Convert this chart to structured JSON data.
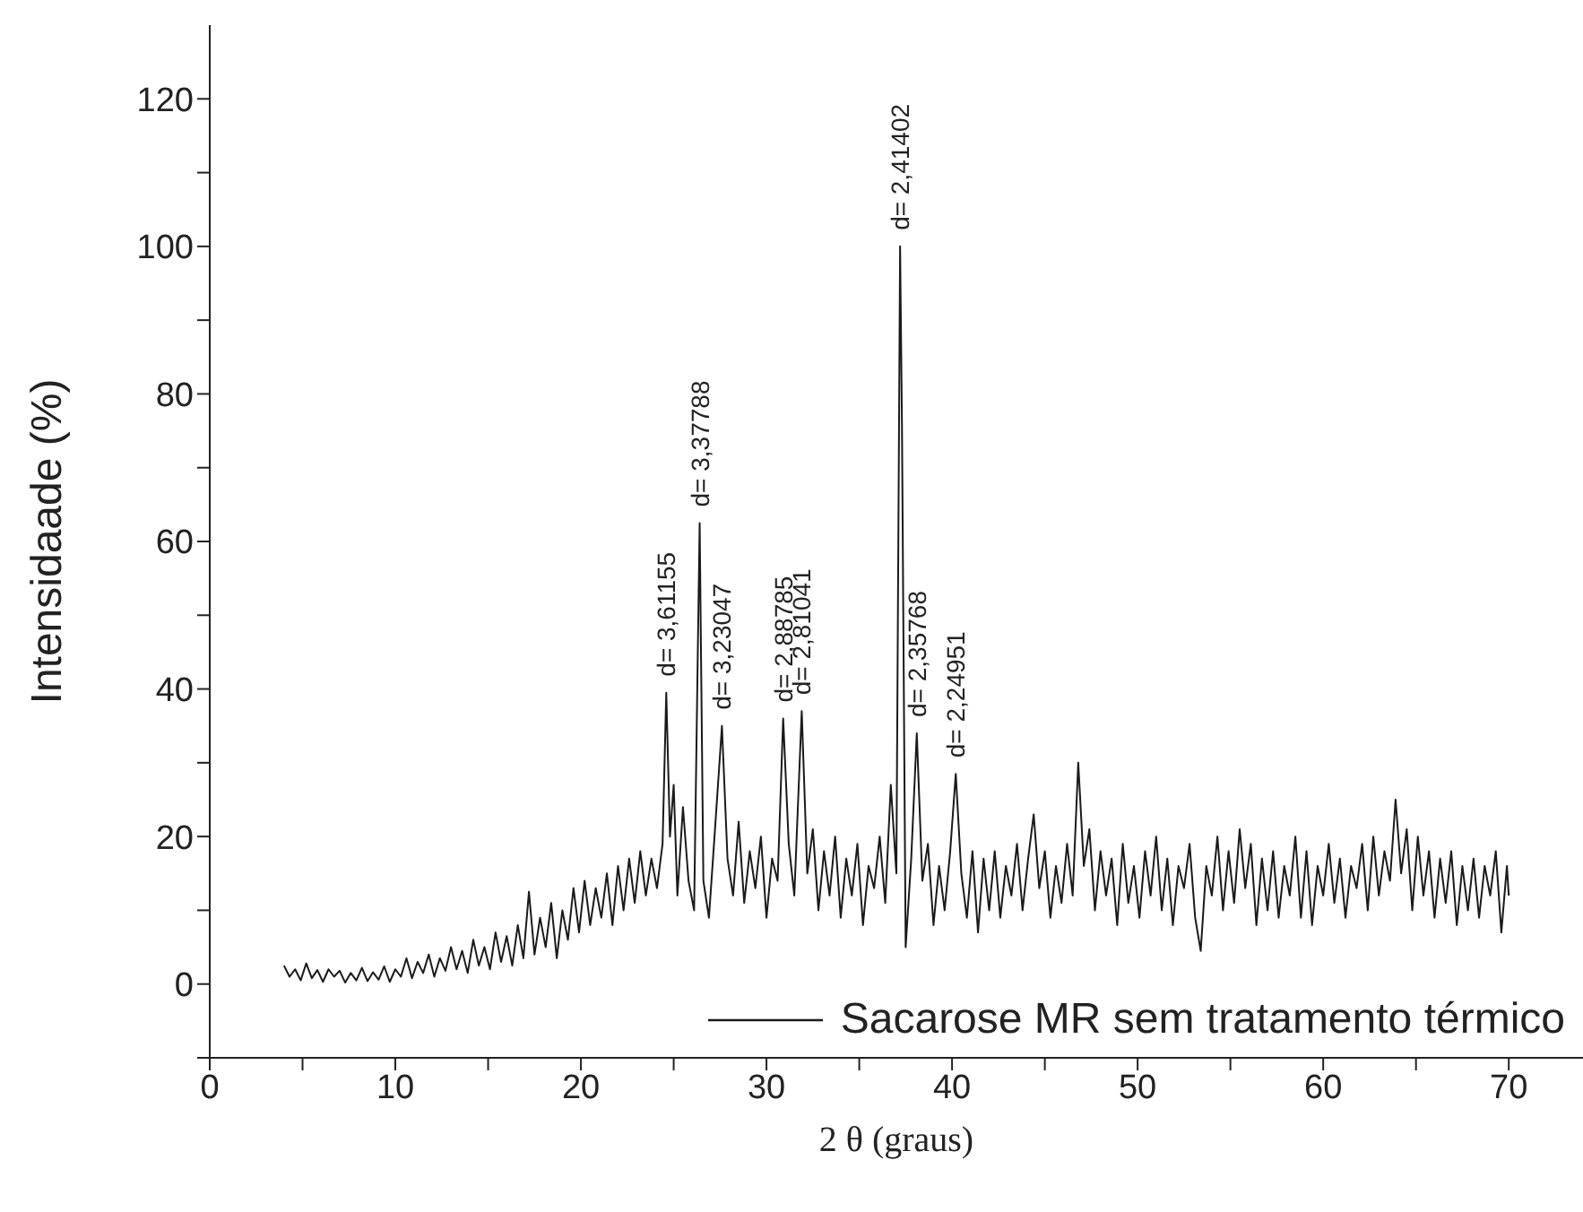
{
  "chart_data": {
    "type": "line",
    "xlabel": "2 θ (graus)",
    "ylabel": "Intensidaade (%)",
    "xlim": [
      0,
      74
    ],
    "ylim": [
      -10,
      130
    ],
    "xticks": [
      0,
      {
        "value": 5,
        "label": null
      },
      10,
      {
        "value": 15,
        "label": null
      },
      20,
      {
        "value": 25,
        "label": null
      },
      30,
      {
        "value": 35,
        "label": null
      },
      40,
      {
        "value": 45,
        "label": null
      },
      50,
      {
        "value": 55,
        "label": null
      },
      60,
      {
        "value": 65,
        "label": null
      },
      70
    ],
    "yticks": [
      {
        "value": -10,
        "label": null
      },
      0,
      {
        "value": 10,
        "label": null
      },
      20,
      {
        "value": 30,
        "label": null
      },
      40,
      {
        "value": 50,
        "label": null
      },
      60,
      {
        "value": 70,
        "label": null
      },
      80,
      {
        "value": 90,
        "label": null
      },
      100,
      {
        "value": 110,
        "label": null
      },
      120
    ],
    "legend": "bottom right",
    "grid": false,
    "marker": "none",
    "line_style": "solid",
    "annotations": [
      {
        "text": "d= 3,61155",
        "x": 24.6,
        "y": 39.5
      },
      {
        "text": "d= 3,37788",
        "x": 26.4,
        "y": 62.5
      },
      {
        "text": "d= 3,23047",
        "x": 27.6,
        "y": 35
      },
      {
        "text": "d= 2,88785",
        "x": 30.9,
        "y": 36
      },
      {
        "text": "d= 2,81041",
        "x": 31.9,
        "y": 37
      },
      {
        "text": "d= 2,41402",
        "x": 37.2,
        "y": 100
      },
      {
        "text": "d= 2,35768",
        "x": 38.1,
        "y": 34
      },
      {
        "text": "d= 2,24951",
        "x": 40.2,
        "y": 28.5
      }
    ],
    "series": [
      {
        "name": "Sacarose MR sem tratamento térmico",
        "color": "#1a1a1a",
        "x": [
          4,
          4.3,
          4.6,
          4.9,
          5.2,
          5.5,
          5.8,
          6.1,
          6.4,
          6.7,
          7,
          7.3,
          7.6,
          7.9,
          8.2,
          8.5,
          8.8,
          9.1,
          9.4,
          9.7,
          10,
          10.3,
          10.6,
          10.9,
          11.2,
          11.5,
          11.8,
          12.1,
          12.4,
          12.7,
          13,
          13.3,
          13.6,
          13.9,
          14.2,
          14.5,
          14.8,
          15.1,
          15.4,
          15.7,
          16,
          16.3,
          16.6,
          16.9,
          17.2,
          17.5,
          17.8,
          18.1,
          18.4,
          18.7,
          19,
          19.3,
          19.6,
          19.9,
          20.2,
          20.5,
          20.8,
          21.1,
          21.4,
          21.7,
          22,
          22.3,
          22.6,
          22.9,
          23.2,
          23.5,
          23.8,
          24.1,
          24.4,
          24.6,
          24.8,
          25,
          25.2,
          25.5,
          25.8,
          26.1,
          26.4,
          26.6,
          26.9,
          27.2,
          27.6,
          27.9,
          28.2,
          28.5,
          28.8,
          29.1,
          29.4,
          29.7,
          30,
          30.3,
          30.6,
          30.9,
          31.2,
          31.5,
          31.9,
          32.2,
          32.5,
          32.8,
          33.1,
          33.4,
          33.7,
          34,
          34.3,
          34.6,
          34.9,
          35.2,
          35.5,
          35.8,
          36.1,
          36.4,
          36.7,
          37,
          37.2,
          37.3,
          37.5,
          37.8,
          38.1,
          38.4,
          38.7,
          39,
          39.3,
          39.6,
          39.9,
          40.2,
          40.5,
          40.8,
          41.1,
          41.4,
          41.7,
          42,
          42.3,
          42.6,
          42.9,
          43.2,
          43.5,
          43.8,
          44.1,
          44.4,
          44.7,
          45,
          45.3,
          45.6,
          45.9,
          46.2,
          46.5,
          46.8,
          47.1,
          47.4,
          47.7,
          48,
          48.3,
          48.6,
          48.9,
          49.2,
          49.5,
          49.8,
          50.1,
          50.4,
          50.7,
          51,
          51.3,
          51.6,
          51.9,
          52.2,
          52.5,
          52.8,
          53.1,
          53.4,
          53.7,
          54,
          54.3,
          54.6,
          54.9,
          55.2,
          55.5,
          55.8,
          56.1,
          56.4,
          56.7,
          57,
          57.3,
          57.6,
          57.9,
          58.2,
          58.5,
          58.8,
          59.1,
          59.4,
          59.7,
          60,
          60.3,
          60.6,
          60.9,
          61.2,
          61.5,
          61.8,
          62.1,
          62.4,
          62.7,
          63,
          63.3,
          63.6,
          63.9,
          64.2,
          64.5,
          64.8,
          65.1,
          65.4,
          65.7,
          66,
          66.3,
          66.6,
          66.9,
          67.2,
          67.5,
          67.8,
          68.1,
          68.4,
          68.7,
          69,
          69.3,
          69.6,
          69.9,
          70
        ],
        "values": [
          2.5,
          1,
          2,
          0.5,
          2.8,
          0.8,
          1.9,
          0.3,
          2,
          1,
          1.8,
          0.2,
          1.5,
          0.5,
          2.2,
          0.4,
          1.6,
          0.6,
          2.4,
          0.3,
          2,
          1,
          3.5,
          0.8,
          3,
          1.5,
          4,
          1,
          3.5,
          1.8,
          5,
          2,
          4.5,
          1.5,
          6,
          2.5,
          5,
          2,
          7,
          3,
          6.5,
          2.5,
          8,
          3.5,
          12.5,
          4,
          9,
          5,
          11,
          3.5,
          10,
          6,
          13,
          7,
          14,
          8,
          13,
          9,
          15,
          8,
          16,
          10,
          17,
          11,
          18,
          12,
          17,
          13,
          19,
          39.5,
          20,
          27,
          12,
          24,
          14,
          10,
          62.5,
          14,
          9,
          20,
          35,
          17,
          12,
          22,
          11,
          18,
          13,
          20,
          9,
          17,
          14,
          36,
          19,
          12,
          37,
          15,
          21,
          10,
          18,
          12,
          20,
          9,
          17,
          12,
          19,
          8,
          16,
          13,
          20,
          11,
          27,
          15,
          100,
          76,
          5,
          17,
          34,
          14,
          19,
          8,
          16,
          10,
          18,
          28.5,
          15,
          9,
          18,
          7,
          17,
          10,
          18,
          9,
          16,
          12,
          19,
          10,
          17,
          23,
          13,
          18,
          9,
          16,
          11,
          19,
          12,
          30,
          16,
          21,
          10,
          18,
          12,
          17,
          8,
          19,
          11,
          16,
          9,
          18,
          12,
          20,
          10,
          17,
          8,
          16,
          13,
          19,
          9,
          4.5,
          16,
          12,
          20,
          10,
          18,
          11,
          21,
          13,
          19,
          8,
          17,
          10,
          18,
          9,
          16,
          12,
          20,
          9,
          18,
          8,
          16,
          12,
          19,
          11,
          17,
          9,
          16,
          13,
          19,
          10,
          20,
          12,
          18,
          14,
          25,
          15,
          21,
          10,
          20,
          12,
          18,
          9,
          17,
          11,
          18,
          8,
          16,
          10,
          17,
          9,
          16,
          12,
          18,
          7,
          16,
          12
        ]
      }
    ]
  }
}
